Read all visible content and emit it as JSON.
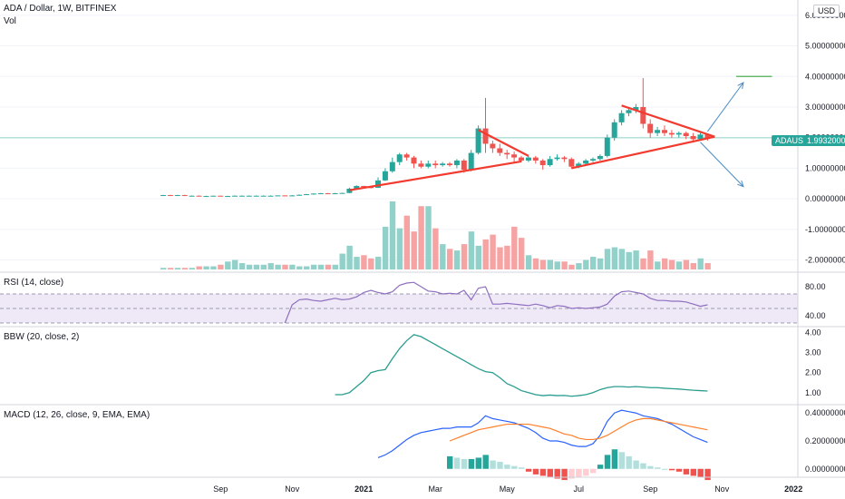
{
  "header": {
    "symbol": "ADA / Dollar, 1W, BITFINEX",
    "vol_label": "Vol",
    "currency": "USD"
  },
  "last_price": {
    "symbol": "ADAUSD",
    "value": "1.99320000"
  },
  "panes": {
    "rsi": "RSI (14, close)",
    "bbw": "BBW (20, close, 2)",
    "macd": "MACD (12, 26, close, 9, EMA, EMA)"
  },
  "colors": {
    "up": "#26a69a",
    "down": "#ef5350",
    "up_vol": "#92d1c9",
    "down_vol": "#f5a3a3",
    "trend": "#f23a2f",
    "arrow": "#4a8cc8",
    "rsi": "#8e6fbf",
    "bbw": "#2a9d8f",
    "macd": "#2962ff",
    "signal": "#ff7f2a",
    "hline": "#8fd5c7"
  },
  "chart_data": [
    {
      "type": "candlestick",
      "ylim": [
        -2.4,
        6.5
      ],
      "yticks": [
        "6.00000000",
        "5.00000000",
        "4.00000000",
        "3.00000000",
        "2.00000000",
        "1.00000000",
        "0.00000000",
        "-1.00000000",
        "-2.00000000"
      ],
      "ytick_values": [
        6,
        5,
        4,
        3,
        2,
        1,
        0,
        -1,
        -2
      ],
      "xticks": [
        "Sep",
        "Nov",
        "2021",
        "Mar",
        "May",
        "Jul",
        "Sep",
        "Nov",
        "2022"
      ],
      "xtick_values": [
        8,
        18,
        28,
        38,
        48,
        58,
        68,
        78,
        88
      ],
      "last_price": 1.9932,
      "candles": [
        [
          0,
          0.12,
          0.12,
          0.11,
          0.13
        ],
        [
          1,
          0.12,
          0.11,
          0.1,
          0.13
        ],
        [
          2,
          0.11,
          0.12,
          0.1,
          0.13
        ],
        [
          3,
          0.12,
          0.1,
          0.09,
          0.13
        ],
        [
          4,
          0.1,
          0.1,
          0.09,
          0.11
        ],
        [
          5,
          0.1,
          0.09,
          0.08,
          0.11
        ],
        [
          6,
          0.09,
          0.09,
          0.08,
          0.1
        ],
        [
          7,
          0.09,
          0.1,
          0.08,
          0.1
        ],
        [
          8,
          0.1,
          0.09,
          0.08,
          0.1
        ],
        [
          9,
          0.09,
          0.09,
          0.08,
          0.1
        ],
        [
          10,
          0.09,
          0.1,
          0.08,
          0.11
        ],
        [
          11,
          0.1,
          0.1,
          0.09,
          0.11
        ],
        [
          12,
          0.1,
          0.1,
          0.09,
          0.11
        ],
        [
          13,
          0.1,
          0.1,
          0.09,
          0.11
        ],
        [
          14,
          0.1,
          0.1,
          0.09,
          0.11
        ],
        [
          15,
          0.1,
          0.1,
          0.09,
          0.11
        ],
        [
          16,
          0.1,
          0.11,
          0.09,
          0.11
        ],
        [
          17,
          0.11,
          0.1,
          0.09,
          0.11
        ],
        [
          18,
          0.1,
          0.11,
          0.1,
          0.12
        ],
        [
          19,
          0.11,
          0.13,
          0.1,
          0.14
        ],
        [
          20,
          0.13,
          0.15,
          0.12,
          0.16
        ],
        [
          21,
          0.15,
          0.17,
          0.14,
          0.18
        ],
        [
          22,
          0.17,
          0.18,
          0.16,
          0.19
        ],
        [
          23,
          0.18,
          0.17,
          0.16,
          0.19
        ],
        [
          24,
          0.17,
          0.18,
          0.16,
          0.19
        ],
        [
          25,
          0.18,
          0.19,
          0.17,
          0.2
        ],
        [
          26,
          0.19,
          0.33,
          0.18,
          0.36
        ],
        [
          27,
          0.33,
          0.42,
          0.32,
          0.44
        ],
        [
          28,
          0.42,
          0.38,
          0.34,
          0.42
        ],
        [
          29,
          0.38,
          0.36,
          0.34,
          0.4
        ],
        [
          30,
          0.36,
          0.6,
          0.35,
          0.7
        ],
        [
          31,
          0.6,
          0.9,
          0.58,
          1.0
        ],
        [
          32,
          0.9,
          1.2,
          0.85,
          1.35
        ],
        [
          33,
          1.2,
          1.45,
          1.1,
          1.5
        ],
        [
          34,
          1.45,
          1.35,
          1.25,
          1.5
        ],
        [
          35,
          1.35,
          1.15,
          1.0,
          1.4
        ],
        [
          36,
          1.15,
          1.05,
          1.0,
          1.25
        ],
        [
          37,
          1.05,
          1.15,
          1.0,
          1.25
        ],
        [
          38,
          1.15,
          1.1,
          1.0,
          1.25
        ],
        [
          39,
          1.1,
          1.15,
          1.05,
          1.2
        ],
        [
          40,
          1.15,
          1.1,
          1.05,
          1.2
        ],
        [
          41,
          1.1,
          1.25,
          1.0,
          1.3
        ],
        [
          42,
          1.25,
          0.95,
          0.85,
          1.3
        ],
        [
          43,
          0.95,
          1.5,
          0.9,
          1.6
        ],
        [
          44,
          1.5,
          2.3,
          1.45,
          2.4
        ],
        [
          45,
          2.3,
          1.8,
          1.5,
          3.3
        ],
        [
          46,
          1.8,
          1.65,
          1.5,
          1.9
        ],
        [
          47,
          1.65,
          1.5,
          1.4,
          1.8
        ],
        [
          48,
          1.5,
          1.45,
          1.3,
          1.6
        ],
        [
          49,
          1.45,
          1.35,
          1.2,
          1.55
        ],
        [
          50,
          1.35,
          1.25,
          1.2,
          1.4
        ],
        [
          51,
          1.25,
          1.35,
          1.2,
          1.4
        ],
        [
          52,
          1.35,
          1.25,
          1.15,
          1.4
        ],
        [
          53,
          1.25,
          1.1,
          0.95,
          1.3
        ],
        [
          54,
          1.1,
          1.3,
          1.05,
          1.4
        ],
        [
          55,
          1.3,
          1.35,
          1.25,
          1.45
        ],
        [
          56,
          1.35,
          1.3,
          1.2,
          1.4
        ],
        [
          57,
          1.3,
          1.05,
          1.0,
          1.35
        ],
        [
          58,
          1.05,
          1.15,
          1.0,
          1.2
        ],
        [
          59,
          1.15,
          1.25,
          1.1,
          1.3
        ],
        [
          60,
          1.25,
          1.3,
          1.2,
          1.35
        ],
        [
          61,
          1.3,
          1.4,
          1.25,
          1.45
        ],
        [
          62,
          1.4,
          2.0,
          1.35,
          2.1
        ],
        [
          63,
          2.0,
          2.5,
          1.9,
          2.6
        ],
        [
          64,
          2.5,
          2.8,
          2.4,
          2.9
        ],
        [
          65,
          2.8,
          2.9,
          2.7,
          3.0
        ],
        [
          66,
          2.9,
          3.0,
          2.8,
          3.1
        ],
        [
          67,
          3.0,
          2.45,
          2.3,
          3.95
        ],
        [
          68,
          2.45,
          2.15,
          2.0,
          2.6
        ],
        [
          69,
          2.15,
          2.25,
          2.05,
          2.35
        ],
        [
          70,
          2.25,
          2.15,
          2.05,
          2.4
        ],
        [
          71,
          2.15,
          2.1,
          2.0,
          2.25
        ],
        [
          72,
          2.1,
          2.15,
          2.0,
          2.2
        ],
        [
          73,
          2.15,
          2.05,
          1.95,
          2.2
        ],
        [
          74,
          2.05,
          1.95,
          1.85,
          2.15
        ],
        [
          75,
          1.95,
          2.1,
          1.9,
          2.15
        ],
        [
          76,
          2.1,
          1.99,
          1.9,
          2.1
        ]
      ],
      "volume": [
        1,
        1,
        1,
        1,
        1,
        2,
        2,
        2,
        3,
        5,
        6,
        4,
        3,
        3,
        3,
        4,
        3,
        3,
        3,
        2,
        2,
        3,
        3,
        3,
        3,
        10,
        15,
        8,
        9,
        7,
        8,
        27,
        43,
        26,
        34,
        24,
        40,
        40,
        26,
        16,
        13,
        12,
        16,
        24,
        15,
        19,
        22,
        14,
        15,
        27,
        20,
        9,
        7,
        6,
        6,
        5,
        5,
        3,
        4,
        6,
        8,
        7,
        13,
        14,
        13,
        11,
        12,
        7,
        12,
        5,
        7,
        6,
        5,
        6,
        4,
        7,
        4
      ],
      "trendlines": [
        {
          "x1": 26,
          "y1": 0.28,
          "x2": 50,
          "y2": 1.22
        },
        {
          "x1": 44,
          "y1": 2.25,
          "x2": 51,
          "y2": 1.4
        },
        {
          "x1": 57,
          "y1": 1.0,
          "x2": 77,
          "y2": 2.03
        },
        {
          "x1": 64,
          "y1": 3.05,
          "x2": 77,
          "y2": 2.03
        }
      ],
      "target_line": {
        "x1": 80,
        "x2": 85,
        "y": 4.0
      },
      "arrows": [
        {
          "x1": 76,
          "y1": 2.2,
          "x2": 81,
          "y2": 3.8
        },
        {
          "x1": 75,
          "y1": 1.85,
          "x2": 81,
          "y2": 0.4
        }
      ]
    },
    {
      "type": "line",
      "name": "RSI",
      "ylim": [
        25,
        100
      ],
      "yticks": [
        "80.00",
        "40.00"
      ],
      "ytick_values": [
        80,
        40
      ],
      "band": [
        30,
        70
      ],
      "x": [
        17,
        18,
        19,
        20,
        21,
        22,
        23,
        24,
        25,
        26,
        27,
        28,
        29,
        30,
        31,
        32,
        33,
        34,
        35,
        36,
        37,
        38,
        39,
        40,
        41,
        42,
        43,
        44,
        45,
        46,
        47,
        48,
        49,
        50,
        51,
        52,
        53,
        54,
        55,
        56,
        57,
        58,
        59,
        60,
        61,
        62,
        63,
        64,
        65,
        66,
        67,
        68,
        69,
        70,
        71,
        72,
        73,
        74,
        75,
        76
      ],
      "values": [
        30,
        55,
        62,
        63,
        61,
        60,
        62,
        64,
        62,
        63,
        66,
        72,
        75,
        72,
        70,
        73,
        82,
        85,
        86,
        80,
        74,
        73,
        70,
        71,
        70,
        75,
        62,
        78,
        80,
        56,
        56,
        57,
        56,
        55,
        54,
        56,
        54,
        51,
        54,
        53,
        50,
        51,
        50,
        51,
        52,
        56,
        67,
        73,
        74,
        72,
        70,
        64,
        61,
        61,
        60,
        60,
        59,
        56,
        53,
        55
      ]
    },
    {
      "type": "line",
      "name": "BBW",
      "ylim": [
        0.4,
        4.3
      ],
      "yticks": [
        "4.00",
        "3.00",
        "2.00",
        "1.00"
      ],
      "ytick_values": [
        4,
        3,
        2,
        1
      ],
      "x": [
        24,
        25,
        26,
        27,
        28,
        29,
        30,
        31,
        32,
        33,
        34,
        35,
        36,
        37,
        38,
        39,
        40,
        41,
        42,
        43,
        44,
        45,
        46,
        47,
        48,
        49,
        50,
        51,
        52,
        53,
        54,
        55,
        56,
        57,
        58,
        59,
        60,
        61,
        62,
        63,
        64,
        65,
        66,
        67,
        68,
        69,
        70,
        71,
        72,
        73,
        74,
        75,
        76
      ],
      "values": [
        0.9,
        0.9,
        1.0,
        1.3,
        1.6,
        2.0,
        2.1,
        2.15,
        2.7,
        3.2,
        3.6,
        3.9,
        3.8,
        3.6,
        3.4,
        3.2,
        3.0,
        2.8,
        2.6,
        2.4,
        2.2,
        2.05,
        2.0,
        1.75,
        1.45,
        1.3,
        1.1,
        1.0,
        0.9,
        0.85,
        0.88,
        0.85,
        0.86,
        0.82,
        0.85,
        0.9,
        1.0,
        1.15,
        1.25,
        1.3,
        1.3,
        1.28,
        1.3,
        1.28,
        1.25,
        1.25,
        1.22,
        1.2,
        1.18,
        1.15,
        1.12,
        1.1,
        1.08
      ]
    },
    {
      "type": "macd",
      "name": "MACD",
      "ylim": [
        -0.06,
        0.46
      ],
      "yticks": [
        "0.40000000",
        "0.20000000",
        "0.00000000"
      ],
      "ytick_values": [
        0.4,
        0.2,
        0
      ],
      "macd_x": [
        30,
        31,
        32,
        33,
        34,
        35,
        36,
        37,
        38,
        39,
        40,
        41,
        42,
        43,
        44,
        45,
        46,
        47,
        48,
        49,
        50,
        51,
        52,
        53,
        54,
        55,
        56,
        57,
        58,
        59,
        60,
        61,
        62,
        63,
        64,
        65,
        66,
        67,
        68,
        69,
        70,
        71,
        72,
        73,
        74,
        75,
        76
      ],
      "macd": [
        0.08,
        0.1,
        0.13,
        0.17,
        0.21,
        0.24,
        0.26,
        0.27,
        0.28,
        0.29,
        0.29,
        0.3,
        0.3,
        0.3,
        0.33,
        0.38,
        0.36,
        0.35,
        0.34,
        0.33,
        0.31,
        0.29,
        0.26,
        0.22,
        0.2,
        0.2,
        0.19,
        0.17,
        0.16,
        0.16,
        0.18,
        0.24,
        0.34,
        0.4,
        0.42,
        0.41,
        0.4,
        0.38,
        0.37,
        0.36,
        0.34,
        0.32,
        0.29,
        0.26,
        0.23,
        0.21,
        0.19
      ],
      "signal_x": [
        40,
        41,
        42,
        43,
        44,
        45,
        46,
        47,
        48,
        49,
        50,
        51,
        52,
        53,
        54,
        55,
        56,
        57,
        58,
        59,
        60,
        61,
        62,
        63,
        64,
        65,
        66,
        67,
        68,
        69,
        70,
        71,
        72,
        73,
        74,
        75,
        76
      ],
      "signal": [
        0.2,
        0.22,
        0.24,
        0.26,
        0.28,
        0.29,
        0.3,
        0.31,
        0.32,
        0.32,
        0.32,
        0.32,
        0.31,
        0.3,
        0.29,
        0.27,
        0.25,
        0.24,
        0.22,
        0.21,
        0.21,
        0.22,
        0.24,
        0.27,
        0.3,
        0.33,
        0.35,
        0.36,
        0.36,
        0.35,
        0.34,
        0.33,
        0.32,
        0.31,
        0.3,
        0.29,
        0.28
      ],
      "hist_x": [
        40,
        41,
        42,
        43,
        44,
        45,
        46,
        47,
        48,
        49,
        50,
        51,
        52,
        53,
        54,
        55,
        56,
        57,
        58,
        59,
        60,
        61,
        62,
        63,
        64,
        65,
        66,
        67,
        68,
        69,
        70,
        71,
        72,
        73,
        74,
        75,
        76
      ],
      "hist": [
        0.09,
        0.08,
        0.07,
        0.07,
        0.08,
        0.1,
        0.06,
        0.05,
        0.03,
        0.02,
        0.01,
        -0.02,
        -0.04,
        -0.05,
        -0.06,
        -0.07,
        -0.08,
        -0.07,
        -0.06,
        -0.05,
        -0.03,
        0.03,
        0.1,
        0.14,
        0.12,
        0.09,
        0.06,
        0.04,
        0.02,
        0.01,
        0.0,
        -0.01,
        -0.02,
        -0.04,
        -0.05,
        -0.06,
        -0.08
      ]
    }
  ]
}
